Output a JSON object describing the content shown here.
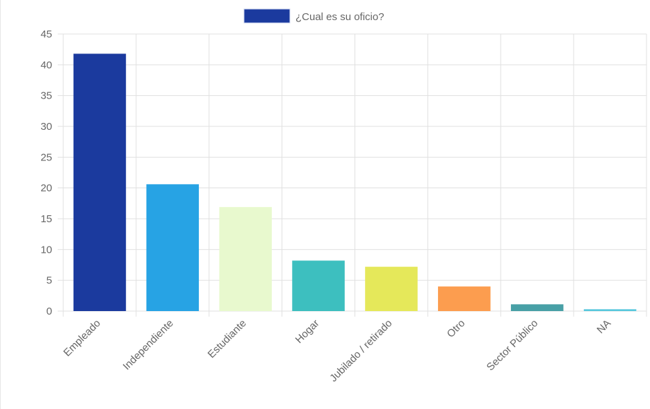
{
  "chart_data": {
    "type": "bar",
    "legend": {
      "label": "¿Cual es su oficio?",
      "color": "#1b3a9e",
      "position": "top"
    },
    "categories": [
      "Empleado",
      "Independiente",
      "Estudiante",
      "Hogar",
      "Jubilado / retirado",
      "Otro",
      "Sector Público",
      "NA"
    ],
    "series": [
      {
        "name": "¿Cual es su oficio?",
        "values": [
          41.8,
          20.6,
          16.9,
          8.2,
          7.2,
          4.0,
          1.1,
          0.3
        ]
      }
    ],
    "colors": [
      "#1b3a9e",
      "#27a3e4",
      "#e8f9ce",
      "#3dbfbf",
      "#e5e85a",
      "#fc9d4f",
      "#48a0a6",
      "#58c8dc"
    ],
    "ylim": [
      0,
      45
    ],
    "yticks": [
      0,
      5,
      10,
      15,
      20,
      25,
      30,
      35,
      40,
      45
    ],
    "grid": true
  }
}
